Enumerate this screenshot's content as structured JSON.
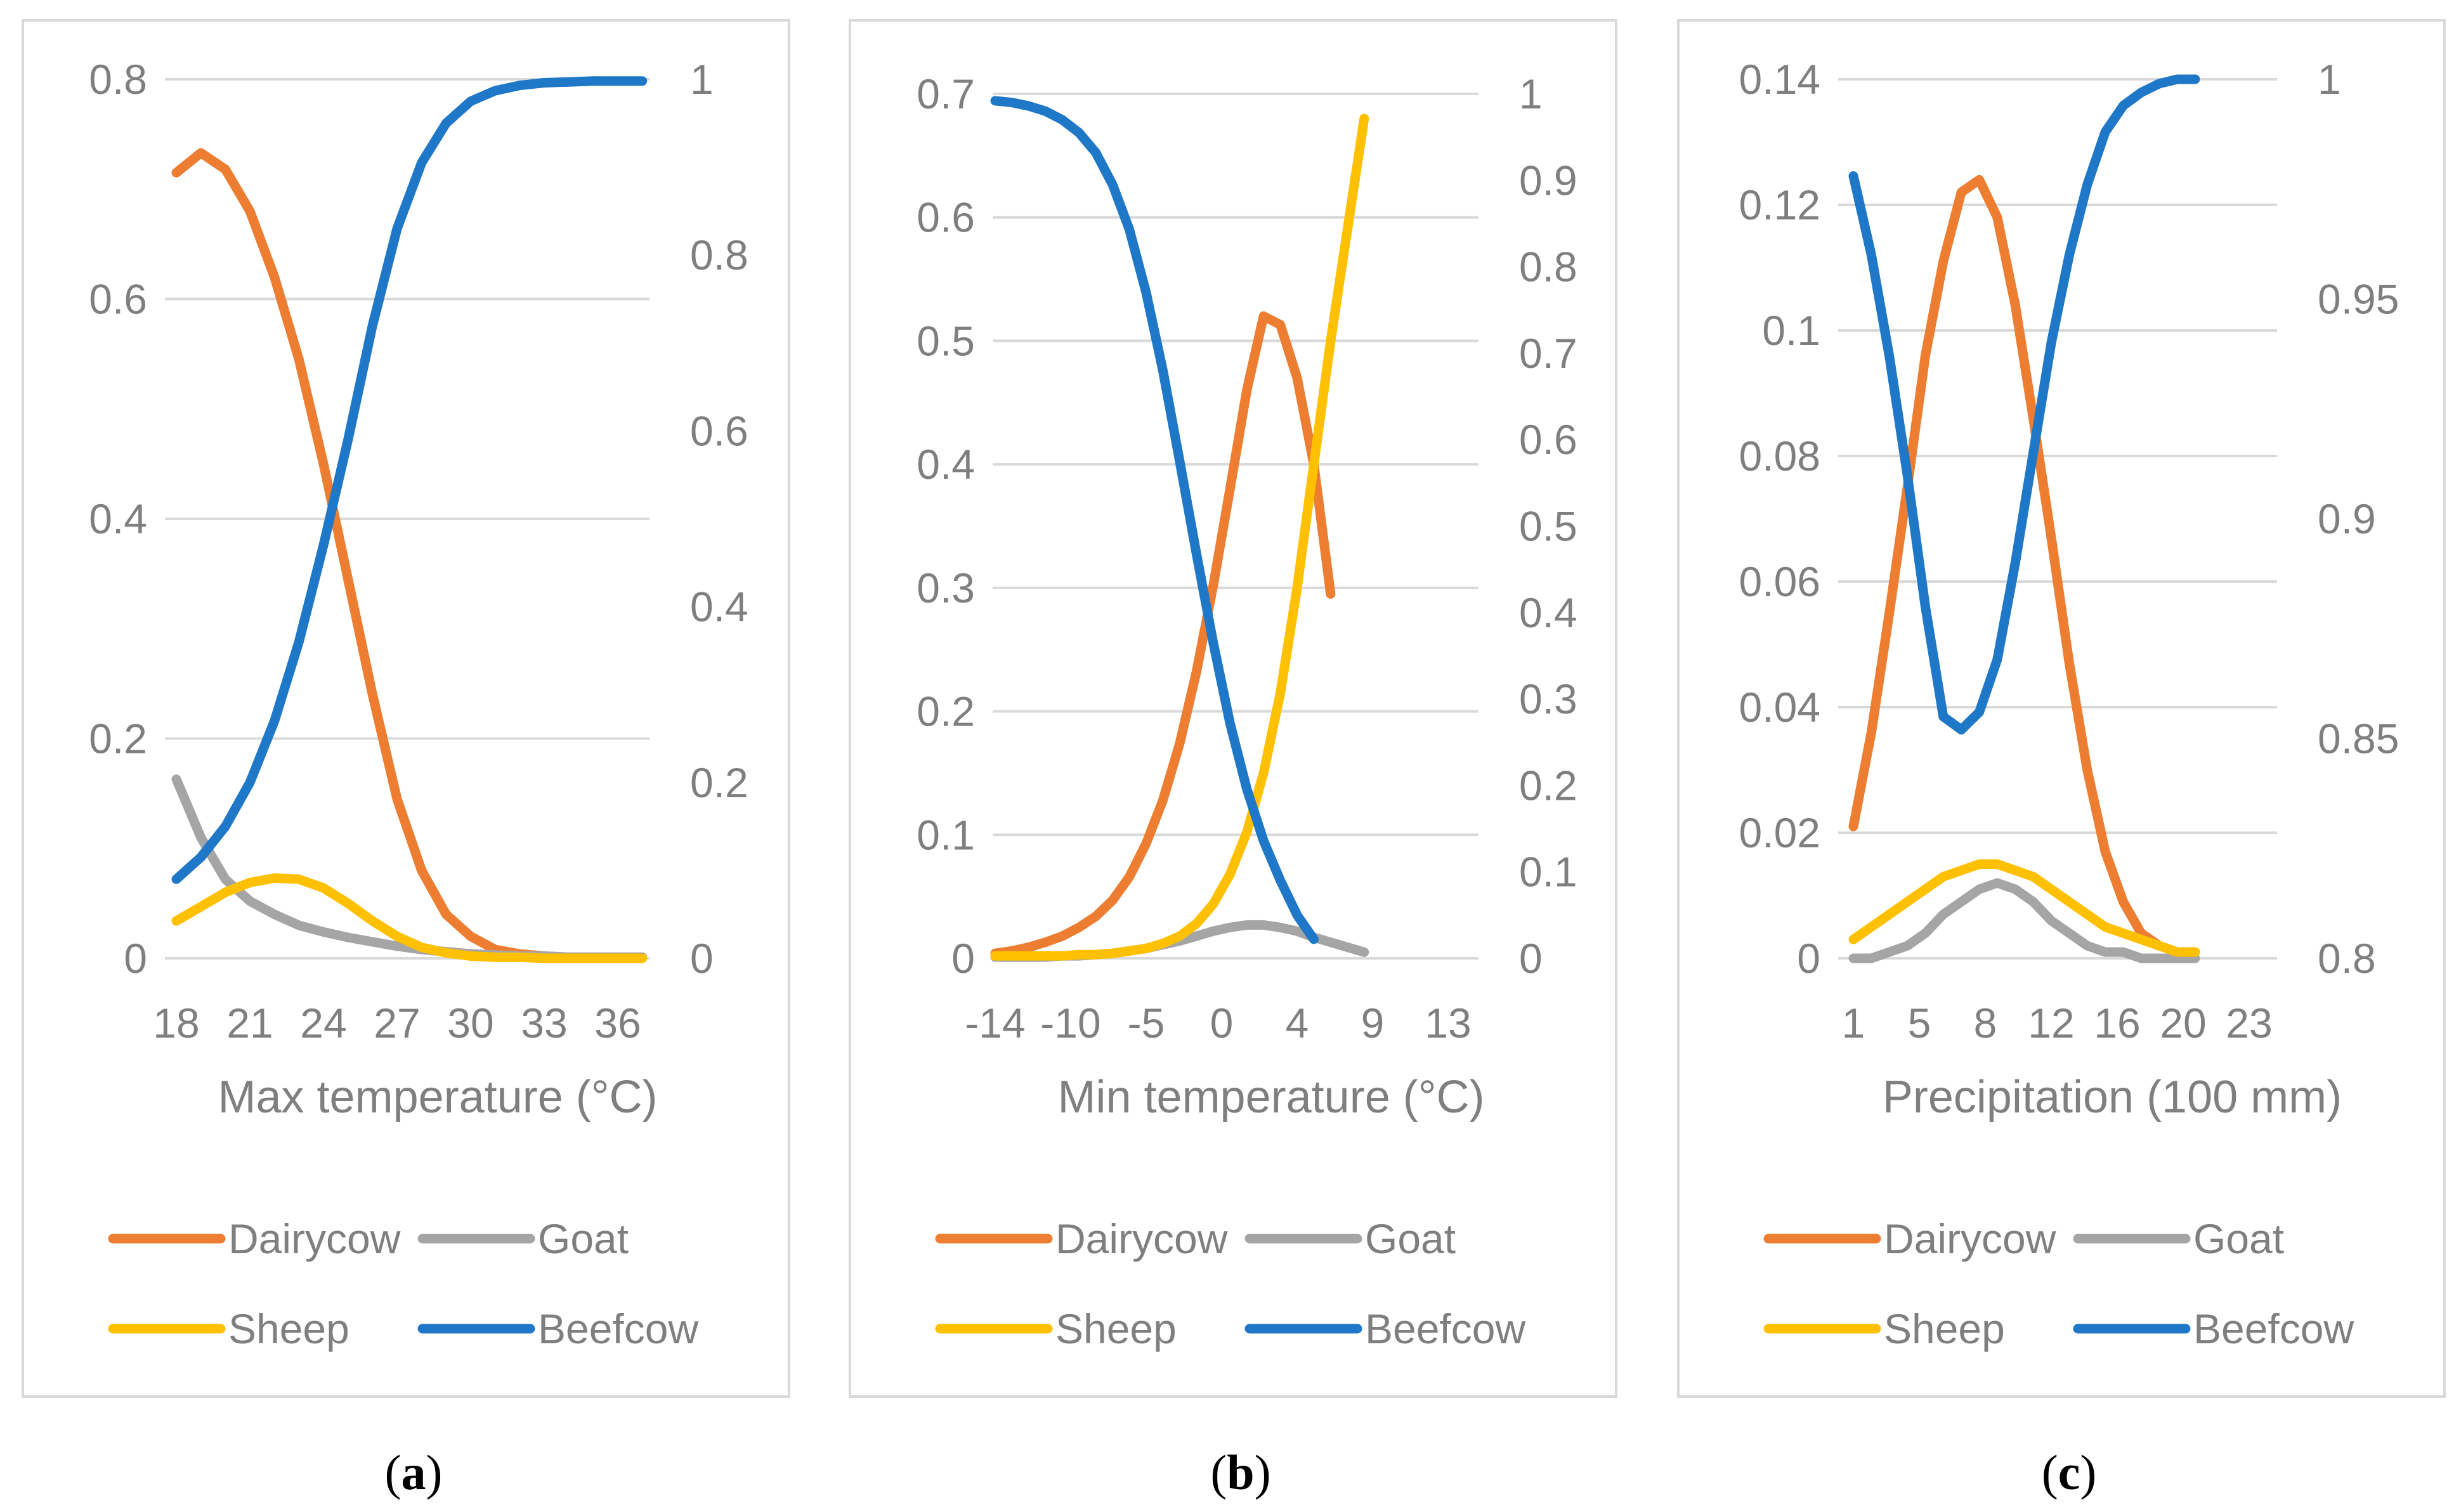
{
  "colors": {
    "Dairycow": "#ed7d31",
    "Goat": "#a5a5a5",
    "Sheep": "#ffc000",
    "Beefcow": "#1f77c8"
  },
  "chart_data": [
    {
      "type": "line",
      "caption": "a",
      "xlabel": "Max temperature (°C)",
      "x": [
        18,
        19,
        20,
        21,
        22,
        23,
        24,
        25,
        26,
        27,
        28,
        29,
        30,
        31,
        32,
        33,
        34,
        35,
        36,
        37
      ],
      "xticks": [
        "18",
        "21",
        "24",
        "27",
        "30",
        "33",
        "36"
      ],
      "ylim": [
        0,
        0.8
      ],
      "yticks": [
        "0",
        "0.2",
        "0.4",
        "0.6",
        "0.8"
      ],
      "y2lim": [
        0,
        1
      ],
      "y2ticks": [
        "0",
        "0.2",
        "0.4",
        "0.6",
        "0.8",
        "1"
      ],
      "legend_position": "bottom",
      "series": [
        {
          "name": "Dairycow",
          "axis": "left",
          "values": [
            0.715,
            0.733,
            0.718,
            0.68,
            0.62,
            0.545,
            0.45,
            0.345,
            0.24,
            0.145,
            0.08,
            0.04,
            0.02,
            0.008,
            0.004,
            0.002,
            0.001,
            0.001,
            0.001,
            0.001
          ]
        },
        {
          "name": "Goat",
          "axis": "left",
          "values": [
            0.163,
            0.11,
            0.072,
            0.052,
            0.04,
            0.03,
            0.024,
            0.019,
            0.015,
            0.011,
            0.008,
            0.006,
            0.004,
            0.003,
            0.002,
            0.002,
            0.001,
            0.001,
            0.001,
            0.001
          ]
        },
        {
          "name": "Sheep",
          "axis": "left",
          "values": [
            0.034,
            0.047,
            0.06,
            0.069,
            0.073,
            0.072,
            0.064,
            0.05,
            0.034,
            0.02,
            0.01,
            0.005,
            0.002,
            0.001,
            0.001,
            0.0,
            0.0,
            0.0,
            0.0,
            0.0
          ]
        },
        {
          "name": "Beefcow",
          "axis": "right",
          "values": [
            0.09,
            0.115,
            0.15,
            0.2,
            0.27,
            0.36,
            0.47,
            0.59,
            0.72,
            0.83,
            0.905,
            0.95,
            0.975,
            0.987,
            0.993,
            0.996,
            0.997,
            0.998,
            0.998,
            0.998
          ]
        }
      ]
    },
    {
      "type": "line",
      "caption": "b",
      "xlabel": "Min temperature (°C)",
      "x": [
        -14,
        -13,
        -12,
        -11,
        -10,
        -9,
        -8,
        -7,
        -6,
        -5,
        -4,
        -3,
        -2,
        -1,
        0,
        1,
        2,
        3,
        4,
        5,
        6,
        7,
        8,
        9,
        10,
        11,
        12,
        13,
        14,
        15
      ],
      "xticks": [
        "-14",
        "-10",
        "-5",
        "0",
        "4",
        "9",
        "13"
      ],
      "ylim": [
        0,
        0.7
      ],
      "yticks": [
        "0",
        "0.1",
        "0.2",
        "0.3",
        "0.4",
        "0.5",
        "0.6",
        "0.7"
      ],
      "y2lim": [
        0,
        1
      ],
      "y2ticks": [
        "0",
        "0.1",
        "0.2",
        "0.3",
        "0.4",
        "0.5",
        "0.6",
        "0.7",
        "0.8",
        "0.9",
        "1"
      ],
      "legend_position": "bottom",
      "series": [
        {
          "name": "Dairycow",
          "axis": "left",
          "values": [
            0.004,
            0.006,
            0.009,
            0.013,
            0.018,
            0.025,
            0.034,
            0.047,
            0.066,
            0.093,
            0.128,
            0.174,
            0.232,
            0.302,
            0.38,
            0.46,
            0.52,
            0.513,
            0.47,
            0.4,
            0.295,
            null,
            null,
            null,
            null,
            null,
            null,
            null,
            null,
            null
          ]
        },
        {
          "name": "Goat",
          "axis": "left",
          "values": [
            0.001,
            0.001,
            0.001,
            0.001,
            0.002,
            0.002,
            0.003,
            0.004,
            0.006,
            0.008,
            0.011,
            0.014,
            0.018,
            0.022,
            0.025,
            0.027,
            0.027,
            0.025,
            0.022,
            0.017,
            0.013,
            0.009,
            0.005,
            null,
            null,
            null,
            null,
            null,
            null,
            null
          ]
        },
        {
          "name": "Sheep",
          "axis": "left",
          "values": [
            0.002,
            0.002,
            0.002,
            0.002,
            0.002,
            0.003,
            0.003,
            0.004,
            0.006,
            0.008,
            0.012,
            0.018,
            0.028,
            0.044,
            0.068,
            0.102,
            0.15,
            0.215,
            0.3,
            0.4,
            0.5,
            0.59,
            0.68,
            null,
            null,
            null,
            null,
            null,
            null,
            null
          ]
        },
        {
          "name": "Beefcow",
          "axis": "right",
          "values": [
            0.992,
            0.99,
            0.986,
            0.98,
            0.97,
            0.955,
            0.932,
            0.895,
            0.843,
            0.77,
            0.68,
            0.575,
            0.468,
            0.365,
            0.272,
            0.196,
            0.136,
            0.09,
            0.05,
            0.022,
            null,
            null,
            null,
            null,
            null,
            null,
            null,
            null,
            null,
            null
          ]
        }
      ]
    },
    {
      "type": "line",
      "caption": "c",
      "xlabel": "Precipitation (100 mm)",
      "x": [
        1,
        2,
        3,
        4,
        5,
        6,
        7,
        8,
        9,
        10,
        11,
        12,
        13,
        14,
        15,
        16,
        17,
        18,
        19,
        20,
        21,
        22,
        23,
        24
      ],
      "xticks": [
        "1",
        "5",
        "8",
        "12",
        "16",
        "20",
        "23"
      ],
      "ylim": [
        0,
        0.14
      ],
      "yticks": [
        "0",
        "0.02",
        "0.04",
        "0.06",
        "0.08",
        "0.1",
        "0.12",
        "0.14"
      ],
      "y2lim": [
        0.8,
        1
      ],
      "y2ticks": [
        "0.8",
        "0.85",
        "0.9",
        "0.95",
        "1"
      ],
      "legend_position": "bottom",
      "series": [
        {
          "name": "Dairycow",
          "axis": "left",
          "values": [
            0.021,
            0.036,
            0.055,
            0.075,
            0.096,
            0.111,
            0.122,
            0.124,
            0.118,
            0.104,
            0.086,
            0.067,
            0.047,
            0.03,
            0.017,
            0.009,
            0.004,
            0.002,
            0.001,
            0.001,
            null,
            null,
            null,
            null
          ]
        },
        {
          "name": "Goat",
          "axis": "left",
          "values": [
            0.0,
            0.0,
            0.001,
            0.002,
            0.004,
            0.007,
            0.009,
            0.011,
            0.012,
            0.011,
            0.009,
            0.006,
            0.004,
            0.002,
            0.001,
            0.001,
            0.0,
            0.0,
            0.0,
            0.0,
            null,
            null,
            null,
            null
          ]
        },
        {
          "name": "Sheep",
          "axis": "left",
          "values": [
            0.003,
            0.005,
            0.007,
            0.009,
            0.011,
            0.013,
            0.014,
            0.015,
            0.015,
            0.014,
            0.013,
            0.011,
            0.009,
            0.007,
            0.005,
            0.004,
            0.003,
            0.002,
            0.001,
            0.001,
            null,
            null,
            null,
            null
          ]
        },
        {
          "name": "Beefcow",
          "axis": "right",
          "values": [
            0.978,
            0.96,
            0.937,
            0.91,
            0.88,
            0.855,
            0.852,
            0.856,
            0.868,
            0.89,
            0.915,
            0.94,
            0.96,
            0.976,
            0.988,
            0.994,
            0.997,
            0.999,
            1.0,
            1.0,
            null,
            null,
            null,
            null
          ]
        }
      ]
    }
  ]
}
